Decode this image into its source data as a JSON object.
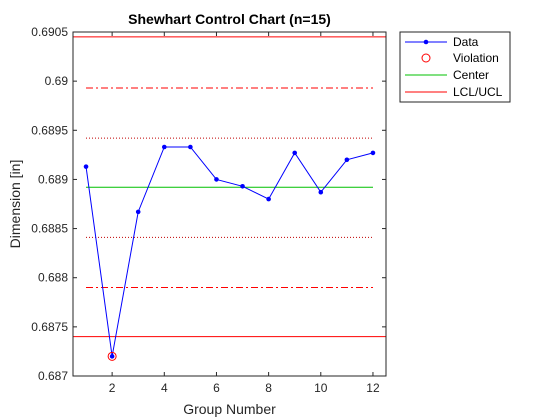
{
  "chart_data": {
    "type": "line",
    "title": "Shewhart Control Chart (n=15)",
    "xlabel": "Group Number",
    "ylabel": "Dimension [in]",
    "xlim": [
      0.5,
      12.5
    ],
    "ylim": [
      0.687,
      0.6905
    ],
    "x_ticks": [
      2,
      4,
      6,
      8,
      10,
      12
    ],
    "x_tick_labels": [
      "2",
      "4",
      "6",
      "8",
      "10",
      "12"
    ],
    "y_ticks": [
      0.687,
      0.6875,
      0.688,
      0.6885,
      0.689,
      0.6895,
      0.69,
      0.6905
    ],
    "y_tick_labels": [
      "0.687",
      "0.6875",
      "0.688",
      "0.6885",
      "0.689",
      "0.6895",
      "0.69",
      "0.6905"
    ],
    "series": [
      {
        "name": "Data",
        "color": "#0000ff",
        "x": [
          1,
          2,
          3,
          4,
          5,
          6,
          7,
          8,
          9,
          10,
          11,
          12
        ],
        "y": [
          0.68913,
          0.6872,
          0.68867,
          0.68933,
          0.68933,
          0.689,
          0.68893,
          0.6888,
          0.68927,
          0.68887,
          0.6892,
          0.68927
        ]
      }
    ],
    "violations": {
      "name": "Violation",
      "color": "#ff0000",
      "x": [
        2
      ],
      "y": [
        0.6872
      ]
    },
    "center": {
      "name": "Center",
      "color": "#00c000",
      "value": 0.68892
    },
    "limits": {
      "name": "LCL/UCL",
      "color": "#ff0000",
      "lcl": 0.6874,
      "ucl": 0.69045
    },
    "sigma2_lines": {
      "color": "#ff0000",
      "values": [
        0.6879,
        0.68993
      ]
    },
    "sigma1_lines": {
      "color": "#c00000",
      "values": [
        0.68841,
        0.68942
      ]
    },
    "grid": false,
    "legend_position": "outside-top-right",
    "legend": [
      "Data",
      "Violation",
      "Center",
      "LCL/UCL"
    ]
  }
}
